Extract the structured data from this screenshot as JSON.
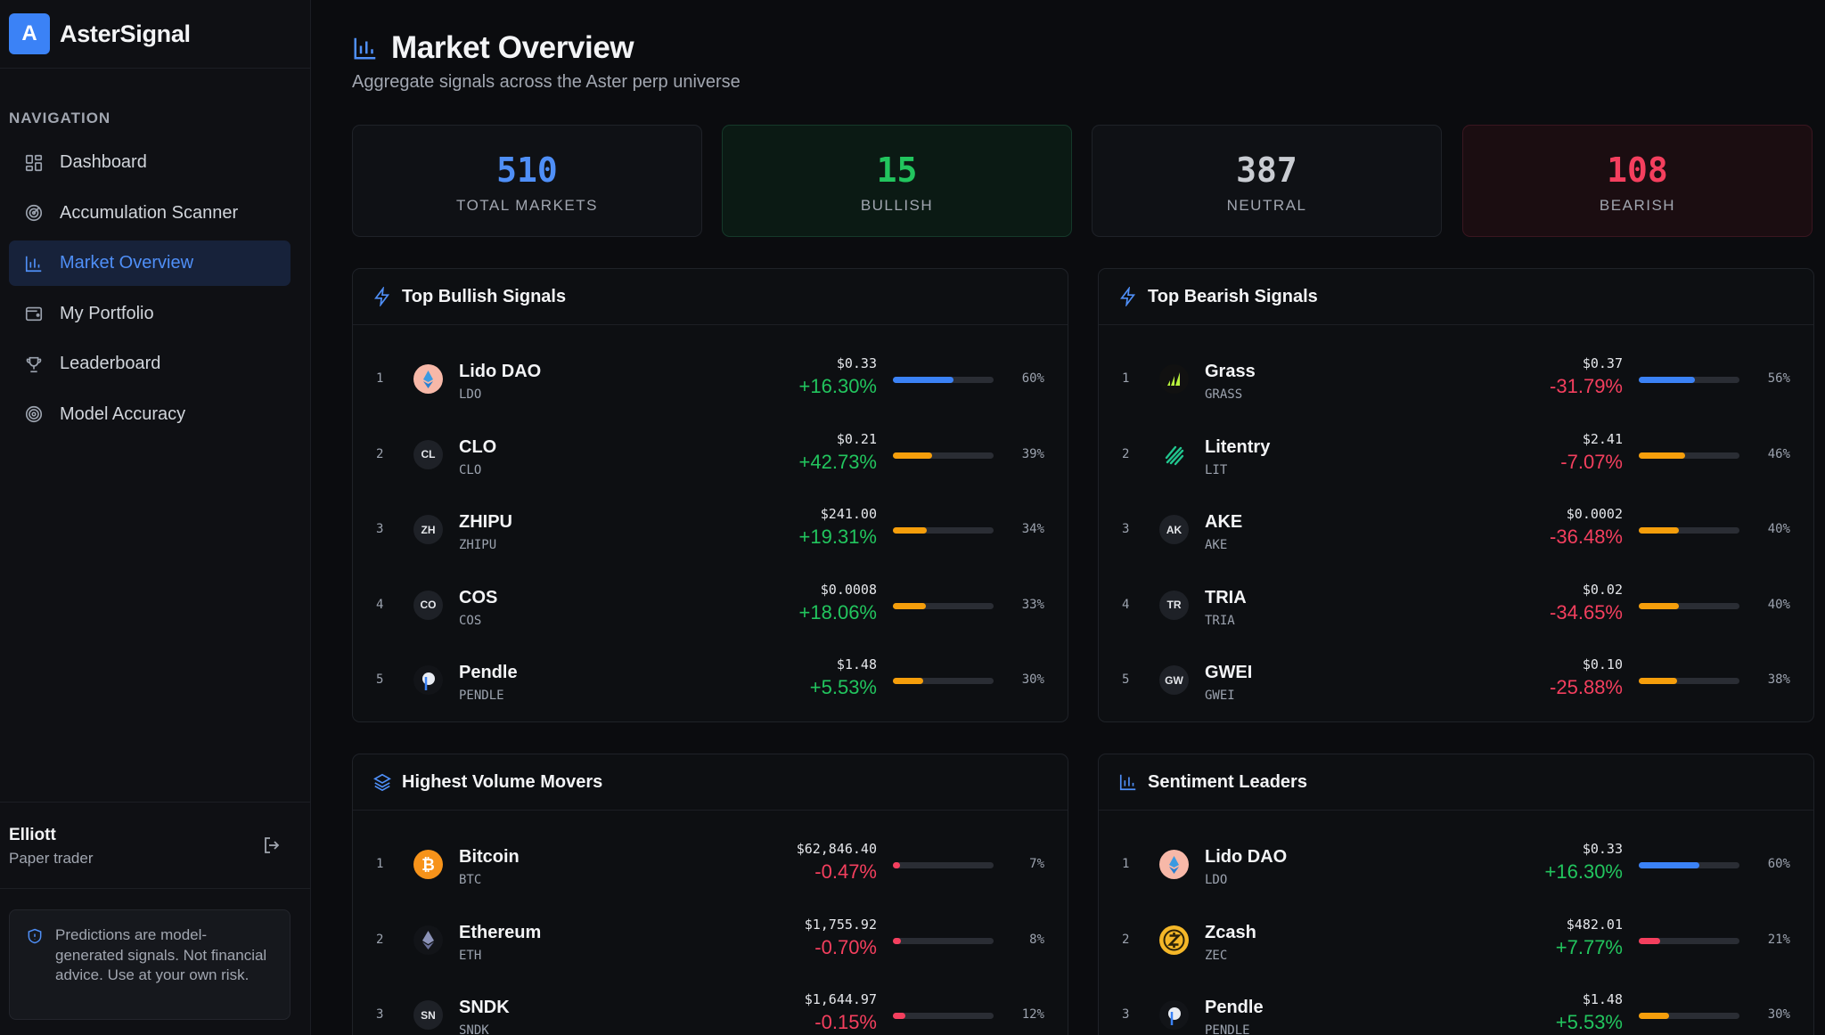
{
  "brand": {
    "logo_letter": "A",
    "name": "AsterSignal"
  },
  "nav": {
    "heading": "NAVIGATION",
    "items": [
      {
        "label": "Dashboard",
        "icon": "dashboard-icon"
      },
      {
        "label": "Accumulation Scanner",
        "icon": "radar-icon"
      },
      {
        "label": "Market Overview",
        "icon": "bar-chart-icon",
        "active": true
      },
      {
        "label": "My Portfolio",
        "icon": "wallet-icon"
      },
      {
        "label": "Leaderboard",
        "icon": "trophy-icon"
      },
      {
        "label": "Model Accuracy",
        "icon": "target-icon"
      }
    ]
  },
  "user": {
    "name": "Elliott",
    "role": "Paper trader"
  },
  "disclaimer": "Predictions are model-generated signals. Not financial advice. Use at your own risk.",
  "page": {
    "title": "Market Overview",
    "subtitle": "Aggregate signals across the Aster perp universe"
  },
  "stats": [
    {
      "value": "510",
      "label": "TOTAL MARKETS",
      "color": "#4f8ff7"
    },
    {
      "value": "15",
      "label": "BULLISH",
      "color": "#22c55e"
    },
    {
      "value": "387",
      "label": "NEUTRAL",
      "color": "#c9ccd2"
    },
    {
      "value": "108",
      "label": "BEARISH",
      "color": "#f43f5e"
    }
  ],
  "colors": {
    "blue_bar": "#3b82f6",
    "orange_bar": "#f59e0b",
    "red_bar": "#f43f5e"
  },
  "panels": {
    "bullish": {
      "title": "Top Bullish Signals",
      "icon": "lightning-icon",
      "rows": [
        {
          "rank": "1",
          "name": "Lido DAO",
          "symbol": "LDO",
          "icon_text": "",
          "icon": "lido-icon",
          "price": "$0.33",
          "change": "+16.30%",
          "dir": "up",
          "pct": "60%",
          "pct_value": 60,
          "bar": "blue"
        },
        {
          "rank": "2",
          "name": "CLO",
          "symbol": "CLO",
          "icon_text": "CL",
          "price": "$0.21",
          "change": "+42.73%",
          "dir": "up",
          "pct": "39%",
          "pct_value": 39,
          "bar": "orange"
        },
        {
          "rank": "3",
          "name": "ZHIPU",
          "symbol": "ZHIPU",
          "icon_text": "ZH",
          "price": "$241.00",
          "change": "+19.31%",
          "dir": "up",
          "pct": "34%",
          "pct_value": 34,
          "bar": "orange"
        },
        {
          "rank": "4",
          "name": "COS",
          "symbol": "COS",
          "icon_text": "CO",
          "price": "$0.0008",
          "change": "+18.06%",
          "dir": "up",
          "pct": "33%",
          "pct_value": 33,
          "bar": "orange"
        },
        {
          "rank": "5",
          "name": "Pendle",
          "symbol": "PENDLE",
          "icon_text": "",
          "icon": "pendle-icon",
          "price": "$1.48",
          "change": "+5.53%",
          "dir": "up",
          "pct": "30%",
          "pct_value": 30,
          "bar": "orange"
        }
      ]
    },
    "bearish": {
      "title": "Top Bearish Signals",
      "icon": "lightning-icon",
      "rows": [
        {
          "rank": "1",
          "name": "Grass",
          "symbol": "GRASS",
          "icon_text": "",
          "icon": "grass-icon",
          "price": "$0.37",
          "change": "-31.79%",
          "dir": "down",
          "pct": "56%",
          "pct_value": 56,
          "bar": "blue"
        },
        {
          "rank": "2",
          "name": "Litentry",
          "symbol": "LIT",
          "icon_text": "",
          "icon": "litentry-icon",
          "price": "$2.41",
          "change": "-7.07%",
          "dir": "down",
          "pct": "46%",
          "pct_value": 46,
          "bar": "orange"
        },
        {
          "rank": "3",
          "name": "AKE",
          "symbol": "AKE",
          "icon_text": "AK",
          "price": "$0.0002",
          "change": "-36.48%",
          "dir": "down",
          "pct": "40%",
          "pct_value": 40,
          "bar": "orange"
        },
        {
          "rank": "4",
          "name": "TRIA",
          "symbol": "TRIA",
          "icon_text": "TR",
          "price": "$0.02",
          "change": "-34.65%",
          "dir": "down",
          "pct": "40%",
          "pct_value": 40,
          "bar": "orange"
        },
        {
          "rank": "5",
          "name": "GWEI",
          "symbol": "GWEI",
          "icon_text": "GW",
          "price": "$0.10",
          "change": "-25.88%",
          "dir": "down",
          "pct": "38%",
          "pct_value": 38,
          "bar": "orange"
        }
      ]
    },
    "volume": {
      "title": "Highest Volume Movers",
      "icon": "layers-icon",
      "rows": [
        {
          "rank": "1",
          "name": "Bitcoin",
          "symbol": "BTC",
          "icon_text": "₿",
          "icon": "bitcoin-icon",
          "price": "$62,846.40",
          "change": "-0.47%",
          "dir": "down",
          "pct": "7%",
          "pct_value": 7,
          "bar": "red"
        },
        {
          "rank": "2",
          "name": "Ethereum",
          "symbol": "ETH",
          "icon_text": "",
          "icon": "ethereum-icon",
          "price": "$1,755.92",
          "change": "-0.70%",
          "dir": "down",
          "pct": "8%",
          "pct_value": 8,
          "bar": "red"
        },
        {
          "rank": "3",
          "name": "SNDK",
          "symbol": "SNDK",
          "icon_text": "SN",
          "price": "$1,644.97",
          "change": "-0.15%",
          "dir": "down",
          "pct": "12%",
          "pct_value": 12,
          "bar": "red"
        }
      ]
    },
    "sentiment": {
      "title": "Sentiment Leaders",
      "icon": "bar-chart-icon",
      "rows": [
        {
          "rank": "1",
          "name": "Lido DAO",
          "symbol": "LDO",
          "icon_text": "",
          "icon": "lido-icon",
          "price": "$0.33",
          "change": "+16.30%",
          "dir": "up",
          "pct": "60%",
          "pct_value": 60,
          "bar": "blue"
        },
        {
          "rank": "2",
          "name": "Zcash",
          "symbol": "ZEC",
          "icon_text": "ⓩ",
          "icon": "zcash-icon",
          "price": "$482.01",
          "change": "+7.77%",
          "dir": "up",
          "pct": "21%",
          "pct_value": 21,
          "bar": "red"
        },
        {
          "rank": "3",
          "name": "Pendle",
          "symbol": "PENDLE",
          "icon_text": "",
          "icon": "pendle-icon",
          "price": "$1.48",
          "change": "+5.53%",
          "dir": "up",
          "pct": "30%",
          "pct_value": 30,
          "bar": "orange"
        }
      ]
    }
  }
}
